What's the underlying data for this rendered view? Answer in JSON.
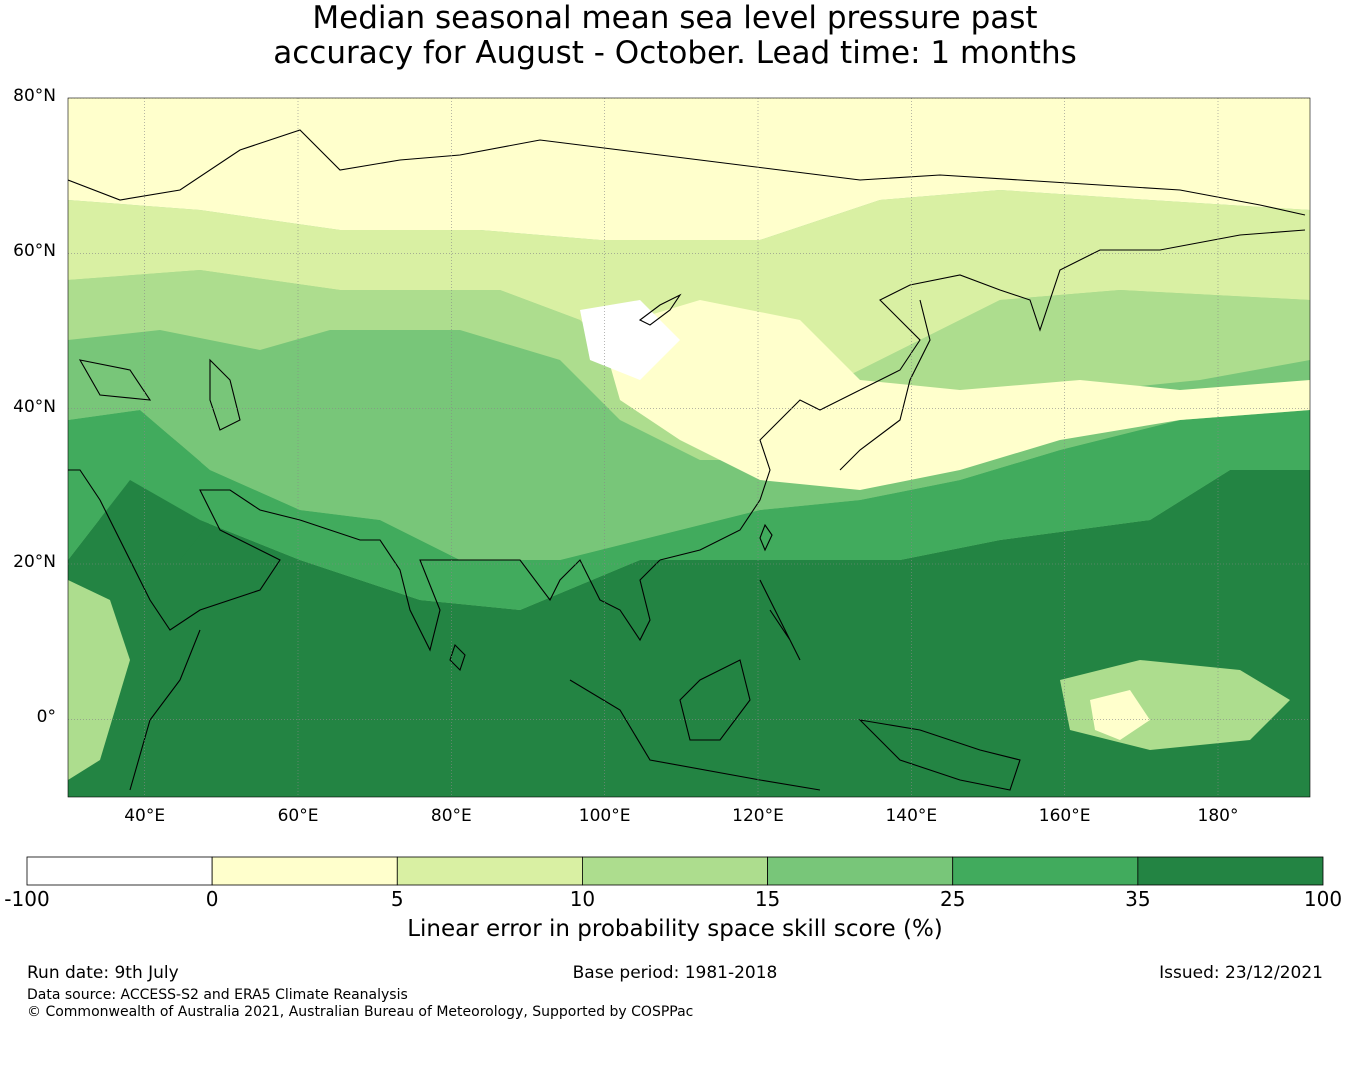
{
  "title": {
    "line1": "Median seasonal mean sea level pressure past",
    "line2": "accuracy for August - October. Lead time: 1 months"
  },
  "map": {
    "region": "Asia and western Pacific",
    "lon_range": [
      30,
      192
    ],
    "lat_range": [
      -10,
      80
    ],
    "lat_labels": [
      "80°N",
      "60°N",
      "40°N",
      "20°N",
      "0°"
    ],
    "lat_values": [
      80,
      60,
      40,
      20,
      0
    ],
    "lon_labels": [
      "40°E",
      "60°E",
      "80°E",
      "100°E",
      "120°E",
      "140°E",
      "160°E",
      "180°"
    ],
    "lon_values": [
      40,
      60,
      80,
      100,
      120,
      140,
      160,
      180
    ],
    "gridlines": true,
    "coastlines": true
  },
  "colorbar": {
    "label": "Linear error in probability space skill score (%)",
    "bounds": [
      "-100",
      "0",
      "5",
      "10",
      "15",
      "25",
      "35",
      "100"
    ],
    "colors": [
      "#ffffff",
      "#ffffcc",
      "#d9f0a3",
      "#addd8e",
      "#78c679",
      "#41ab5d",
      "#238443"
    ]
  },
  "footer": {
    "run_date": "Run date: 9th July",
    "base_period": "Base period: 1981-2018",
    "issued": "Issued: 23/12/2021",
    "data_source": "Data source: ACCESS-S2 and ERA5 Climate Reanalysis",
    "copyright": "© Commonwealth of Australia 2021, Australian Bureau of Meteorology, Supported by COSPPac"
  }
}
